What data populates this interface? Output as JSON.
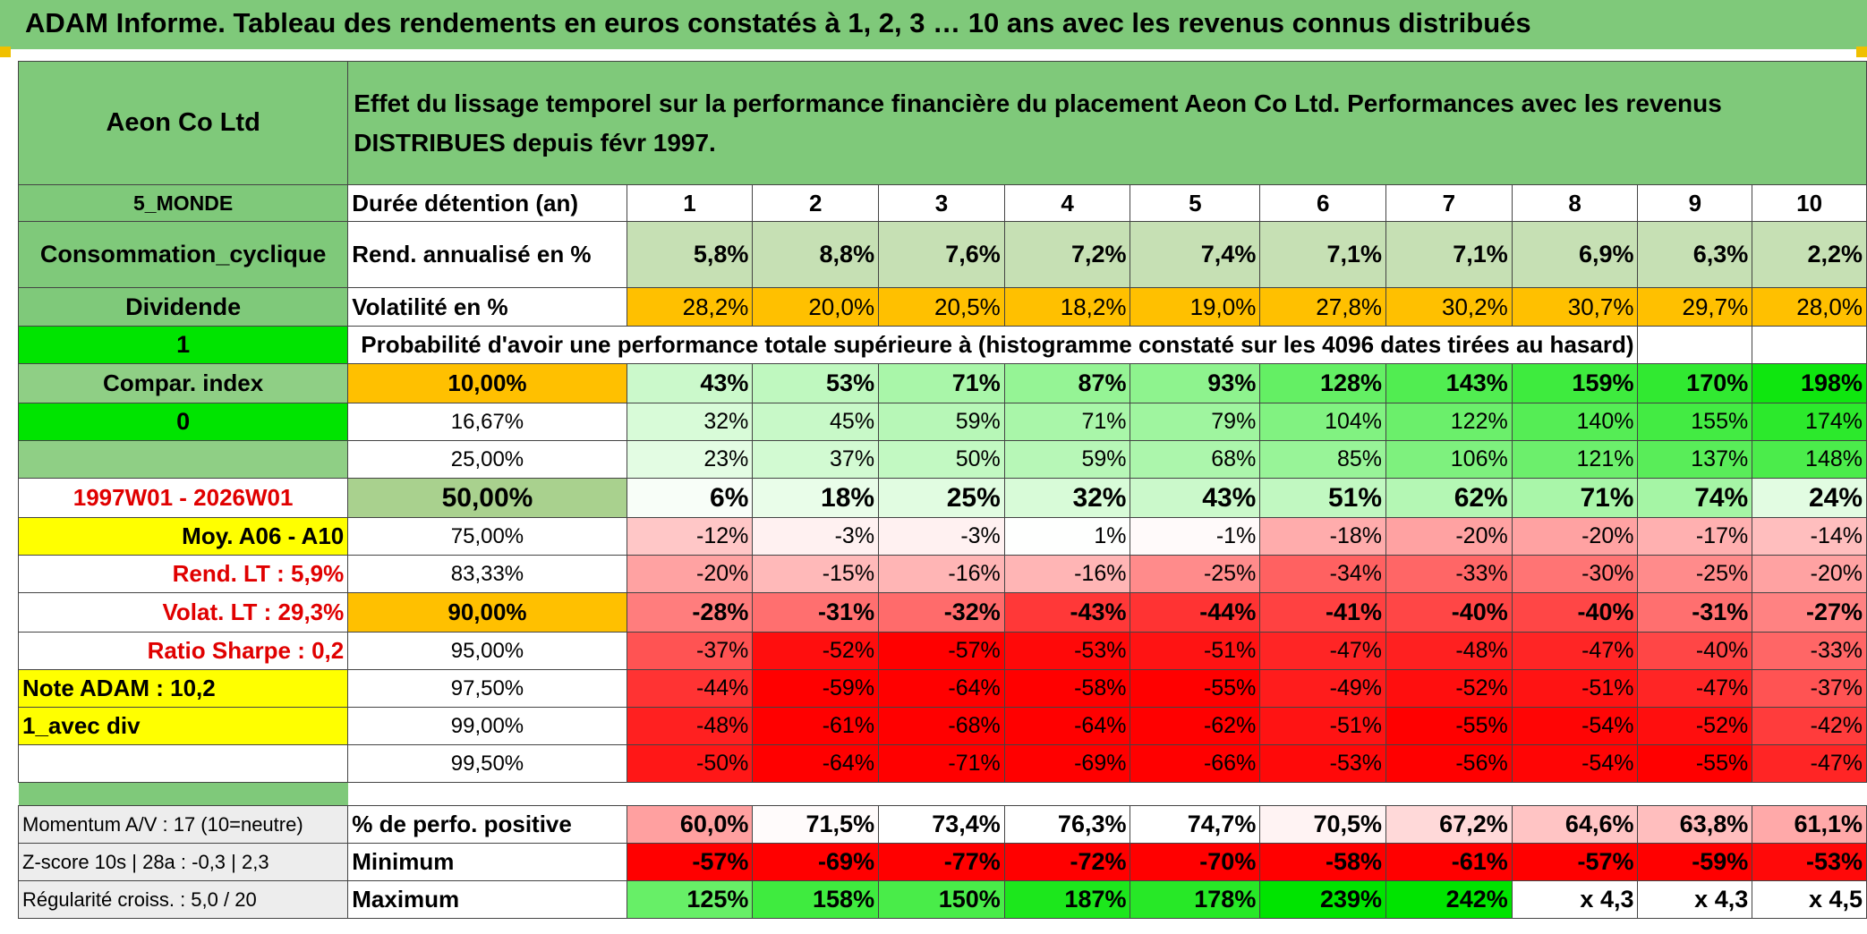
{
  "title": "ADAM Informe. Tableau des rendements en euros constatés à 1, 2, 3 … 10 ans avec les revenus connus distribués",
  "company": "Aeon Co Ltd",
  "description": "Effet du lissage temporel sur la performance financière du placement Aeon Co Ltd. Performances avec les revenus DISTRIBUES depuis févr 1997.",
  "left": {
    "region": "5_MONDE",
    "sector": "Consommation_cyclique",
    "type": "Dividende",
    "flag1": "1",
    "compar": "Compar. index",
    "flag0": "0",
    "period": "1997W01 - 2026W01",
    "moy": "Moy. A06 - A10",
    "rend_lt": "Rend. LT :    5,9%",
    "volat_lt": "Volat. LT :    29,3%",
    "sharpe": "Ratio Sharpe :    0,2",
    "note": "Note ADAM : 10,2",
    "avec_div": "1_avec div",
    "momentum": "Momentum A/V : 17 (10=neutre)",
    "zscore": "Z-score 10s | 28a : -0,3 | 2,3",
    "regularite": "Régularité croiss. : 5,0 / 20"
  },
  "labels": {
    "duree": "Durée détention (an)",
    "rend": "Rend. annualisé en %",
    "vol": "Volatilité en %",
    "proba": "Probabilité d'avoir une performance totale supérieure à (histogramme constaté sur les 4096 dates tirées au hasard)",
    "pos": "% de perfo. positive",
    "min": "Minimum",
    "max": "Maximum"
  },
  "years": [
    "1",
    "2",
    "3",
    "4",
    "5",
    "6",
    "7",
    "8",
    "9",
    "10"
  ],
  "rend": [
    "5,8%",
    "8,8%",
    "7,6%",
    "7,2%",
    "7,4%",
    "7,1%",
    "7,1%",
    "6,9%",
    "6,3%",
    "2,2%"
  ],
  "vol": [
    "28,2%",
    "20,0%",
    "20,5%",
    "18,2%",
    "19,0%",
    "27,8%",
    "30,2%",
    "30,7%",
    "29,7%",
    "28,0%"
  ],
  "pct_rows": [
    {
      "p": "10,00%",
      "v": [
        "43%",
        "53%",
        "71%",
        "87%",
        "93%",
        "128%",
        "143%",
        "159%",
        "170%",
        "198%"
      ]
    },
    {
      "p": "16,67%",
      "v": [
        "32%",
        "45%",
        "59%",
        "71%",
        "79%",
        "104%",
        "122%",
        "140%",
        "155%",
        "174%"
      ]
    },
    {
      "p": "25,00%",
      "v": [
        "23%",
        "37%",
        "50%",
        "59%",
        "68%",
        "85%",
        "106%",
        "121%",
        "137%",
        "148%"
      ]
    },
    {
      "p": "50,00%",
      "v": [
        "6%",
        "18%",
        "25%",
        "32%",
        "43%",
        "51%",
        "62%",
        "71%",
        "74%",
        "24%"
      ]
    },
    {
      "p": "75,00%",
      "v": [
        "-12%",
        "-3%",
        "-3%",
        "1%",
        "-1%",
        "-18%",
        "-20%",
        "-20%",
        "-17%",
        "-14%"
      ]
    },
    {
      "p": "83,33%",
      "v": [
        "-20%",
        "-15%",
        "-16%",
        "-16%",
        "-25%",
        "-34%",
        "-33%",
        "-30%",
        "-25%",
        "-20%"
      ]
    },
    {
      "p": "90,00%",
      "v": [
        "-28%",
        "-31%",
        "-32%",
        "-43%",
        "-44%",
        "-41%",
        "-40%",
        "-40%",
        "-31%",
        "-27%"
      ]
    },
    {
      "p": "95,00%",
      "v": [
        "-37%",
        "-52%",
        "-57%",
        "-53%",
        "-51%",
        "-47%",
        "-48%",
        "-47%",
        "-40%",
        "-33%"
      ]
    },
    {
      "p": "97,50%",
      "v": [
        "-44%",
        "-59%",
        "-64%",
        "-58%",
        "-55%",
        "-49%",
        "-52%",
        "-51%",
        "-47%",
        "-37%"
      ]
    },
    {
      "p": "99,00%",
      "v": [
        "-48%",
        "-61%",
        "-68%",
        "-64%",
        "-62%",
        "-51%",
        "-55%",
        "-54%",
        "-52%",
        "-42%"
      ]
    },
    {
      "p": "99,50%",
      "v": [
        "-50%",
        "-64%",
        "-71%",
        "-69%",
        "-66%",
        "-53%",
        "-56%",
        "-54%",
        "-55%",
        "-47%"
      ]
    }
  ],
  "pos": [
    "60,0%",
    "71,5%",
    "73,4%",
    "76,3%",
    "74,7%",
    "70,5%",
    "67,2%",
    "64,6%",
    "63,8%",
    "61,1%"
  ],
  "min": [
    "-57%",
    "-69%",
    "-77%",
    "-72%",
    "-70%",
    "-58%",
    "-61%",
    "-57%",
    "-59%",
    "-53%"
  ],
  "max": [
    "125%",
    "158%",
    "150%",
    "187%",
    "178%",
    "239%",
    "242%",
    "x 4,3",
    "x 4,3",
    "x 4,5"
  ],
  "colors": {
    "header_green": "#7fc97a",
    "orange": "#ffc000",
    "yellow": "#ffff00",
    "bright_green": "#00e400",
    "red_text": "#e00000"
  }
}
